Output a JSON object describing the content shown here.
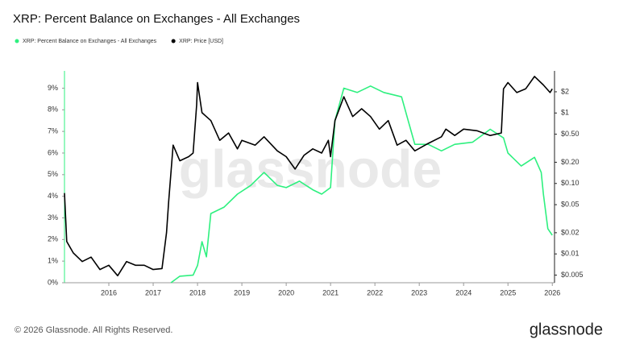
{
  "chart_data": {
    "type": "line",
    "title": "XRP: Percent Balance on Exchanges - All Exchanges",
    "watermark": "glassnode",
    "footer": "© 2026 Glassnode. All Rights Reserved.",
    "brand": "glassnode",
    "xlim": [
      2015.0,
      2026.05
    ],
    "xticks": [
      2016,
      2017,
      2018,
      2019,
      2020,
      2021,
      2022,
      2023,
      2024,
      2025,
      2026
    ],
    "ylim": [
      0,
      9.8
    ],
    "yticks": [
      {
        "value": 0,
        "label": "0%"
      },
      {
        "value": 1,
        "label": "1%"
      },
      {
        "value": 2,
        "label": "2%"
      },
      {
        "value": 3,
        "label": "3%"
      },
      {
        "value": 4,
        "label": "4%"
      },
      {
        "value": 5,
        "label": "5%"
      },
      {
        "value": 6,
        "label": "6%"
      },
      {
        "value": 7,
        "label": "7%"
      },
      {
        "value": 8,
        "label": "8%"
      },
      {
        "value": 9,
        "label": "9%"
      }
    ],
    "y2lim": [
      0.0039,
      3.96
    ],
    "y2log": true,
    "y2ticks": [
      {
        "value": 0.005,
        "label": "$0.005"
      },
      {
        "value": 0.01,
        "label": "$0.01"
      },
      {
        "value": 0.02,
        "label": "$0.02"
      },
      {
        "value": 0.05,
        "label": "$0.05"
      },
      {
        "value": 0.1,
        "label": "$0.10"
      },
      {
        "value": 0.2,
        "label": "$0.20"
      },
      {
        "value": 0.5,
        "label": "$0.50"
      },
      {
        "value": 1,
        "label": "$1"
      },
      {
        "value": 2,
        "label": "$2"
      }
    ],
    "series": [
      {
        "name": "XRP: Percent Balance on Exchanges - All Exchanges",
        "color": "#2ef07f",
        "axis": "y",
        "x": [
          2017.4,
          2017.6,
          2017.9,
          2018.0,
          2018.1,
          2018.2,
          2018.3,
          2018.6,
          2018.9,
          2019.2,
          2019.5,
          2019.8,
          2020.0,
          2020.3,
          2020.6,
          2020.8,
          2021.0,
          2021.1,
          2021.3,
          2021.6,
          2021.9,
          2022.2,
          2022.6,
          2022.75,
          2022.9,
          2023.2,
          2023.5,
          2023.8,
          2024.2,
          2024.6,
          2024.9,
          2025.0,
          2025.3,
          2025.6,
          2025.75,
          2025.8,
          2025.9,
          2026.0
        ],
        "values": [
          0,
          0.3,
          0.35,
          0.8,
          1.9,
          1.2,
          3.2,
          3.5,
          4.1,
          4.5,
          5.1,
          4.5,
          4.4,
          4.7,
          4.3,
          4.1,
          4.4,
          7.5,
          9.0,
          8.8,
          9.1,
          8.8,
          8.6,
          7.5,
          6.4,
          6.4,
          6.1,
          6.4,
          6.5,
          7.1,
          6.7,
          6.0,
          5.4,
          5.8,
          5.1,
          4.1,
          2.5,
          2.2
        ]
      },
      {
        "name": "XRP: Price [USD]",
        "color": "#000000",
        "axis": "y2",
        "x": [
          2015.0,
          2015.05,
          2015.2,
          2015.4,
          2015.6,
          2015.8,
          2016.0,
          2016.2,
          2016.4,
          2016.6,
          2016.8,
          2017.0,
          2017.2,
          2017.3,
          2017.35,
          2017.45,
          2017.6,
          2017.8,
          2017.9,
          2017.98,
          2018.0,
          2018.1,
          2018.3,
          2018.5,
          2018.7,
          2018.9,
          2019.0,
          2019.3,
          2019.5,
          2019.8,
          2020.0,
          2020.2,
          2020.4,
          2020.6,
          2020.8,
          2020.95,
          2021.0,
          2021.1,
          2021.3,
          2021.5,
          2021.7,
          2021.9,
          2022.1,
          2022.3,
          2022.5,
          2022.7,
          2022.9,
          2023.2,
          2023.5,
          2023.6,
          2023.8,
          2024.0,
          2024.3,
          2024.6,
          2024.85,
          2024.9,
          2025.0,
          2025.2,
          2025.4,
          2025.6,
          2025.8,
          2025.95,
          2026.0
        ],
        "values": [
          0.073,
          0.015,
          0.0103,
          0.0078,
          0.009,
          0.006,
          0.0069,
          0.0049,
          0.0078,
          0.0069,
          0.0069,
          0.006,
          0.0062,
          0.02,
          0.056,
          0.35,
          0.21,
          0.24,
          0.27,
          1.31,
          2.7,
          1.01,
          0.78,
          0.41,
          0.52,
          0.31,
          0.41,
          0.35,
          0.46,
          0.29,
          0.24,
          0.16,
          0.25,
          0.31,
          0.27,
          0.41,
          0.24,
          0.78,
          1.7,
          0.89,
          1.15,
          0.89,
          0.59,
          0.78,
          0.35,
          0.41,
          0.29,
          0.37,
          0.46,
          0.59,
          0.48,
          0.59,
          0.56,
          0.48,
          0.52,
          2.2,
          2.7,
          1.95,
          2.2,
          3.3,
          2.5,
          1.95,
          2.2
        ]
      }
    ]
  }
}
